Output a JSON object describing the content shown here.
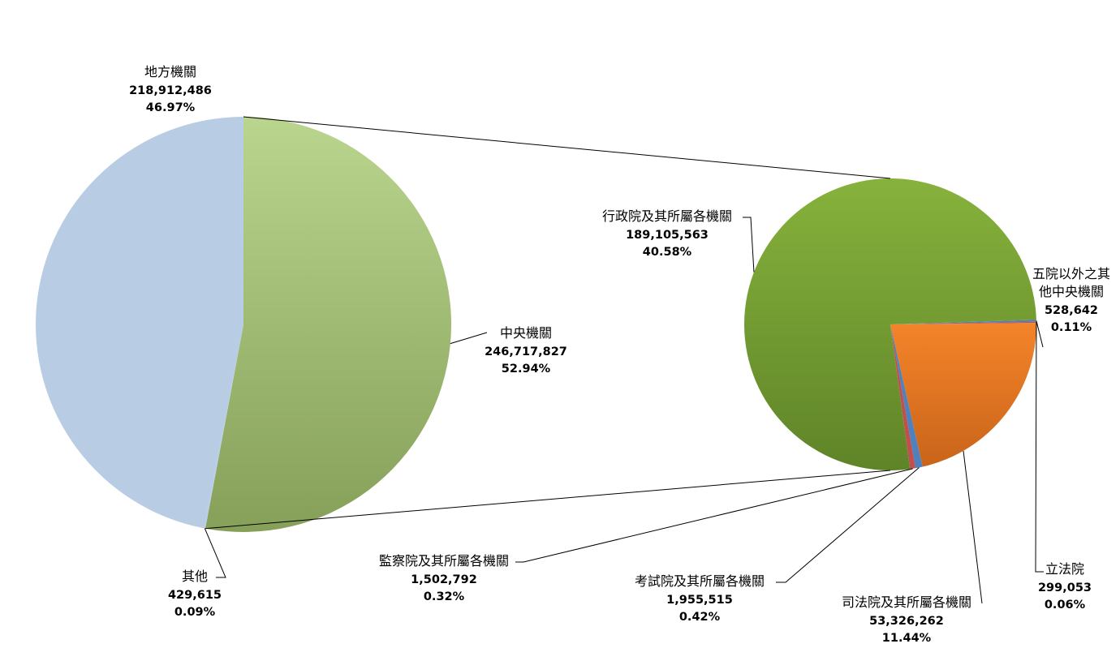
{
  "chart_data": {
    "type": "pie",
    "primary": {
      "slices": [
        {
          "label": "中央機關",
          "value": 246717827,
          "value_text": "246,717,827",
          "percent_text": "52.94%",
          "color": "#9bbb59"
        },
        {
          "label": "其他",
          "value": 429615,
          "value_text": "429,615",
          "percent_text": "0.09%",
          "color": "#b9cde5"
        },
        {
          "label": "地方機關",
          "value": 218912486,
          "value_text": "218,912,486",
          "percent_text": "46.97%",
          "color": "#b8cce4"
        }
      ]
    },
    "secondary": {
      "breakdown_of": "中央機關",
      "slices": [
        {
          "label": "五院以外之其他中央機關",
          "label_lines": [
            "五院以外之其",
            "他中央機關"
          ],
          "value": 528642,
          "value_text": "528,642",
          "percent_text": "0.11%",
          "color": "#4f81bd"
        },
        {
          "label": "立法院",
          "value": 299053,
          "value_text": "299,053",
          "percent_text": "0.06%",
          "color": "#c0504d"
        },
        {
          "label": "司法院及其所屬各機關",
          "value": 53326262,
          "value_text": "53,326,262",
          "percent_text": "11.44%",
          "color": "#f79646"
        },
        {
          "label": "考試院及其所屬各機關",
          "value": 1955515,
          "value_text": "1,955,515",
          "percent_text": "0.42%",
          "color": "#4f81bd"
        },
        {
          "label": "監察院及其所屬各機關",
          "value": 1502792,
          "value_text": "1,502,792",
          "percent_text": "0.32%",
          "color": "#c0504d"
        },
        {
          "label": "行政院及其所屬各機關",
          "value": 189105563,
          "value_text": "189,105,563",
          "percent_text": "40.58%",
          "color": "#76a03a"
        }
      ]
    }
  }
}
